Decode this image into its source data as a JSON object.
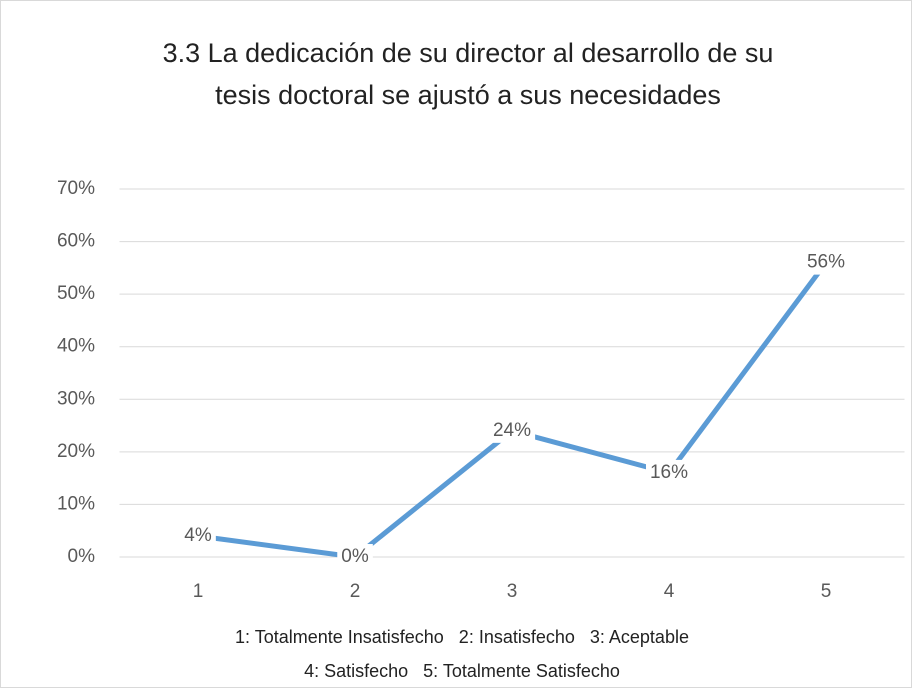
{
  "chart_data": {
    "type": "line",
    "title": [
      "3.3 La dedicación de su director al desarrollo de su",
      "tesis doctoral se ajustó a sus necesidades"
    ],
    "categories": [
      "1",
      "2",
      "3",
      "4",
      "5"
    ],
    "values": [
      4,
      0,
      24,
      16,
      56
    ],
    "value_labels": [
      "4%",
      "0%",
      "24%",
      "16%",
      "56%"
    ],
    "color": "#5b9bd5",
    "ylim": [
      0,
      70
    ],
    "yticks": [
      {
        "value": 0,
        "label": "0%"
      },
      {
        "value": 10,
        "label": "10%"
      },
      {
        "value": 20,
        "label": "20%"
      },
      {
        "value": 30,
        "label": "30%"
      },
      {
        "value": 40,
        "label": "40%"
      },
      {
        "value": 50,
        "label": "50%"
      },
      {
        "value": 60,
        "label": "60%"
      },
      {
        "value": 70,
        "label": "70%"
      }
    ],
    "grid": true,
    "annotation": [
      "1: Totalmente Insatisfecho   2: Insatisfecho   3: Aceptable",
      "4: Satisfecho   5: Totalmente Satisfecho"
    ]
  }
}
